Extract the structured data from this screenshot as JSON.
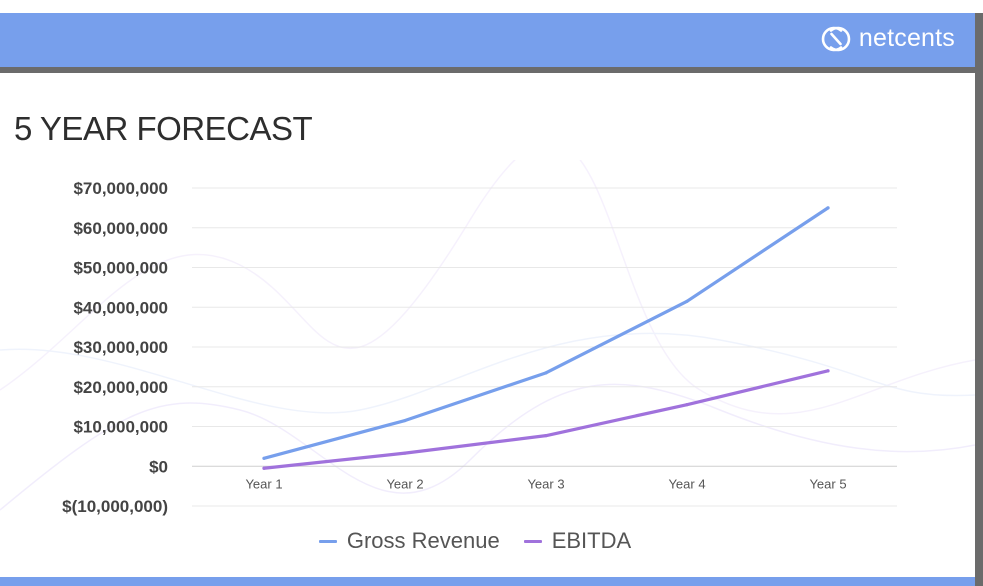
{
  "header": {
    "logo_text": "netcents"
  },
  "page": {
    "title": "5 YEAR FORECAST"
  },
  "colors": {
    "header": "#779fec",
    "gross_revenue": "#779fec",
    "ebitda": "#a072dc"
  },
  "chart_data": {
    "type": "line",
    "title": "5 YEAR FORECAST",
    "categories": [
      "Year 1",
      "Year 2",
      "Year 3",
      "Year 4",
      "Year 5"
    ],
    "ylim": [
      -10000000,
      70000000
    ],
    "yticks": [
      70000000,
      60000000,
      50000000,
      40000000,
      30000000,
      20000000,
      10000000,
      0,
      -10000000
    ],
    "ytick_labels": [
      "$70,000,000",
      "$60,000,000",
      "$50,000,000",
      "$40,000,000",
      "$30,000,000",
      "$20,000,000",
      "$10,000,000",
      "$0",
      "$(10,000,000)"
    ],
    "grid": true,
    "legend_position": "bottom",
    "series": [
      {
        "name": "Gross Revenue",
        "color": "#779fec",
        "values": [
          2000000,
          11500000,
          23500000,
          41500000,
          65000000
        ]
      },
      {
        "name": "EBITDA",
        "color": "#a072dc",
        "values": [
          -500000,
          3300000,
          7700000,
          15500000,
          24000000
        ]
      }
    ]
  }
}
